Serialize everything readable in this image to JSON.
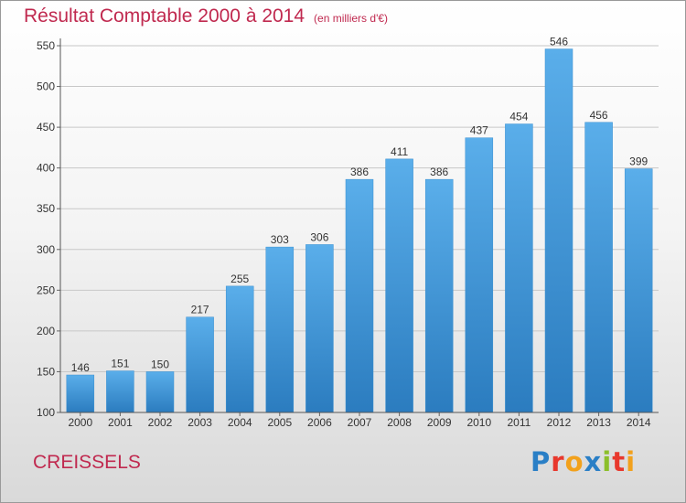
{
  "title": "Résultat Comptable 2000 à 2014",
  "subtitle": "(en milliers d'€)",
  "place": "CREISSELS",
  "logo": {
    "letters": [
      "P",
      "r",
      "o",
      "x",
      "i",
      "t",
      "i"
    ],
    "colors": [
      "#2a7fc6",
      "#e8382d",
      "#f2a11c",
      "#2a7fc6",
      "#8cbf2a",
      "#e8382d",
      "#f2a11c"
    ]
  },
  "colors": {
    "bar_top": "#5aaeea",
    "bar_bottom": "#2b7cbf",
    "title": "#c0294f"
  },
  "chart_data": {
    "type": "bar",
    "title": "Résultat Comptable 2000 à 2014",
    "xlabel": "",
    "ylabel": "",
    "categories": [
      "2000",
      "2001",
      "2002",
      "2003",
      "2004",
      "2005",
      "2006",
      "2007",
      "2008",
      "2009",
      "2010",
      "2011",
      "2012",
      "2013",
      "2014"
    ],
    "values": [
      146,
      151,
      150,
      217,
      255,
      303,
      306,
      386,
      411,
      386,
      437,
      454,
      546,
      456,
      399
    ],
    "ylim": [
      100,
      550
    ],
    "yticks": [
      100,
      150,
      200,
      250,
      300,
      350,
      400,
      450,
      500,
      550
    ],
    "grid": true
  }
}
